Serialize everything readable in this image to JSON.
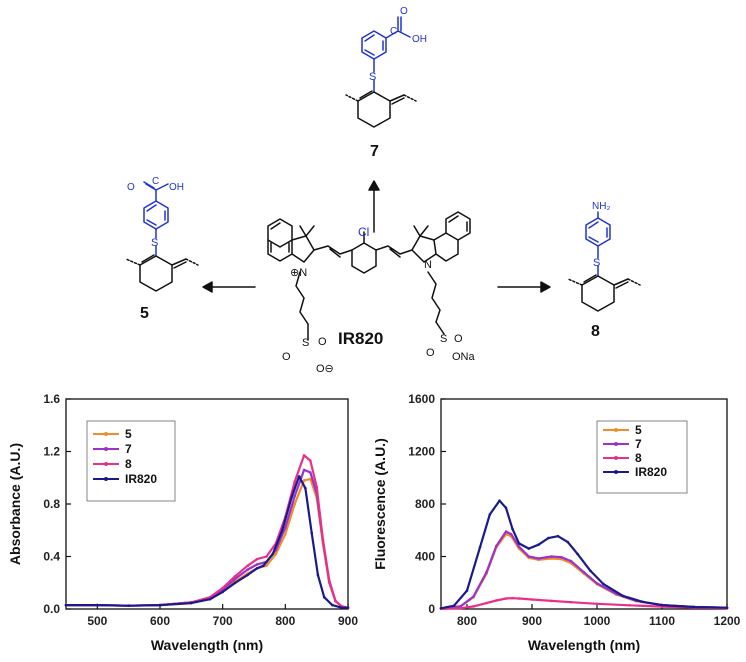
{
  "scheme": {
    "center_label": "IR820",
    "center_substituent": "Cl",
    "center_counterion": "ONa",
    "center_sulfonate": "O⊖",
    "compounds": [
      {
        "id": "7",
        "group": "C",
        "group2": "OH",
        "group3": "O",
        "linker": "S"
      },
      {
        "id": "5",
        "group": "C",
        "group2": "OH",
        "group3": "O",
        "linker": "S"
      },
      {
        "id": "8",
        "group": "NH₂",
        "linker": "S"
      }
    ]
  },
  "colors": {
    "5": "#f28c28",
    "7": "#9933cc",
    "8": "#e8308a",
    "IR820": "#1a1a8c",
    "blue_group": "#2233cc"
  },
  "chart_data": [
    {
      "type": "line",
      "xlabel": "Wavelength (nm)",
      "ylabel": "Absorbance (A.U.)",
      "xlim": [
        450,
        900
      ],
      "ylim": [
        0,
        1.6
      ],
      "xticks": [
        "500",
        "600",
        "700",
        "800",
        "900"
      ],
      "yticks": [
        "0.0",
        "0.4",
        "0.8",
        "1.2",
        "1.6"
      ],
      "legend_position": "top-left",
      "series": [
        {
          "name": "5",
          "x": [
            450,
            500,
            550,
            600,
            650,
            680,
            700,
            720,
            740,
            755,
            770,
            785,
            800,
            815,
            830,
            840,
            850,
            860,
            870,
            880,
            890,
            900
          ],
          "y": [
            0.03,
            0.03,
            0.025,
            0.03,
            0.05,
            0.08,
            0.14,
            0.21,
            0.27,
            0.31,
            0.33,
            0.42,
            0.57,
            0.8,
            0.98,
            0.99,
            0.85,
            0.5,
            0.2,
            0.06,
            0.02,
            0.01
          ]
        },
        {
          "name": "7",
          "x": [
            450,
            500,
            550,
            600,
            650,
            680,
            700,
            720,
            740,
            755,
            770,
            785,
            800,
            815,
            830,
            840,
            850,
            860,
            870,
            880,
            890,
            900
          ],
          "y": [
            0.03,
            0.03,
            0.025,
            0.03,
            0.05,
            0.085,
            0.15,
            0.23,
            0.3,
            0.34,
            0.36,
            0.45,
            0.62,
            0.86,
            1.06,
            1.04,
            0.88,
            0.52,
            0.21,
            0.06,
            0.02,
            0.01
          ]
        },
        {
          "name": "8",
          "x": [
            450,
            500,
            550,
            600,
            650,
            680,
            700,
            720,
            740,
            755,
            770,
            785,
            800,
            815,
            830,
            840,
            850,
            860,
            870,
            880,
            890,
            900
          ],
          "y": [
            0.03,
            0.03,
            0.025,
            0.03,
            0.05,
            0.09,
            0.16,
            0.25,
            0.33,
            0.38,
            0.4,
            0.5,
            0.7,
            0.97,
            1.17,
            1.13,
            0.93,
            0.53,
            0.22,
            0.06,
            0.02,
            0.01
          ]
        },
        {
          "name": "IR820",
          "x": [
            450,
            500,
            550,
            600,
            650,
            680,
            700,
            720,
            740,
            755,
            765,
            780,
            795,
            810,
            822,
            832,
            842,
            852,
            862,
            875,
            890,
            900
          ],
          "y": [
            0.03,
            0.03,
            0.025,
            0.03,
            0.045,
            0.075,
            0.13,
            0.2,
            0.26,
            0.31,
            0.33,
            0.42,
            0.6,
            0.85,
            1.01,
            0.92,
            0.58,
            0.26,
            0.09,
            0.03,
            0.01,
            0.01
          ]
        }
      ]
    },
    {
      "type": "line",
      "xlabel": "Wavelength (nm)",
      "ylabel": "Fluorescence (A.U.)",
      "xlim": [
        760,
        1200
      ],
      "ylim": [
        0,
        1600
      ],
      "xticks": [
        "800",
        "900",
        "1000",
        "1100",
        "1200"
      ],
      "yticks": [
        "0",
        "400",
        "800",
        "1200",
        "1600"
      ],
      "legend_position": "top-right",
      "series": [
        {
          "name": "5",
          "x": [
            760,
            790,
            810,
            830,
            845,
            860,
            868,
            880,
            895,
            910,
            930,
            945,
            960,
            980,
            1000,
            1030,
            1060,
            1100,
            1150,
            1200
          ],
          "y": [
            5,
            20,
            90,
            270,
            470,
            570,
            555,
            460,
            390,
            375,
            385,
            380,
            350,
            270,
            190,
            110,
            60,
            30,
            15,
            10
          ]
        },
        {
          "name": "7",
          "x": [
            760,
            790,
            810,
            830,
            845,
            860,
            868,
            880,
            895,
            910,
            930,
            945,
            960,
            980,
            1000,
            1030,
            1060,
            1100,
            1150,
            1200
          ],
          "y": [
            5,
            20,
            95,
            280,
            480,
            590,
            570,
            475,
            400,
            385,
            400,
            395,
            365,
            280,
            195,
            115,
            62,
            30,
            15,
            10
          ]
        },
        {
          "name": "8",
          "x": [
            760,
            790,
            810,
            830,
            845,
            860,
            870,
            880,
            900,
            930,
            960,
            1000,
            1050,
            1100,
            1150,
            1200
          ],
          "y": [
            2,
            5,
            20,
            45,
            65,
            80,
            82,
            80,
            72,
            62,
            52,
            40,
            28,
            18,
            10,
            6
          ]
        },
        {
          "name": "IR820",
          "x": [
            760,
            780,
            800,
            820,
            835,
            850,
            860,
            870,
            880,
            895,
            910,
            925,
            940,
            955,
            970,
            990,
            1010,
            1040,
            1070,
            1100,
            1150,
            1200
          ],
          "y": [
            5,
            25,
            140,
            470,
            720,
            825,
            770,
            610,
            500,
            460,
            490,
            540,
            555,
            510,
            420,
            290,
            190,
            100,
            55,
            30,
            15,
            10
          ]
        }
      ]
    }
  ]
}
